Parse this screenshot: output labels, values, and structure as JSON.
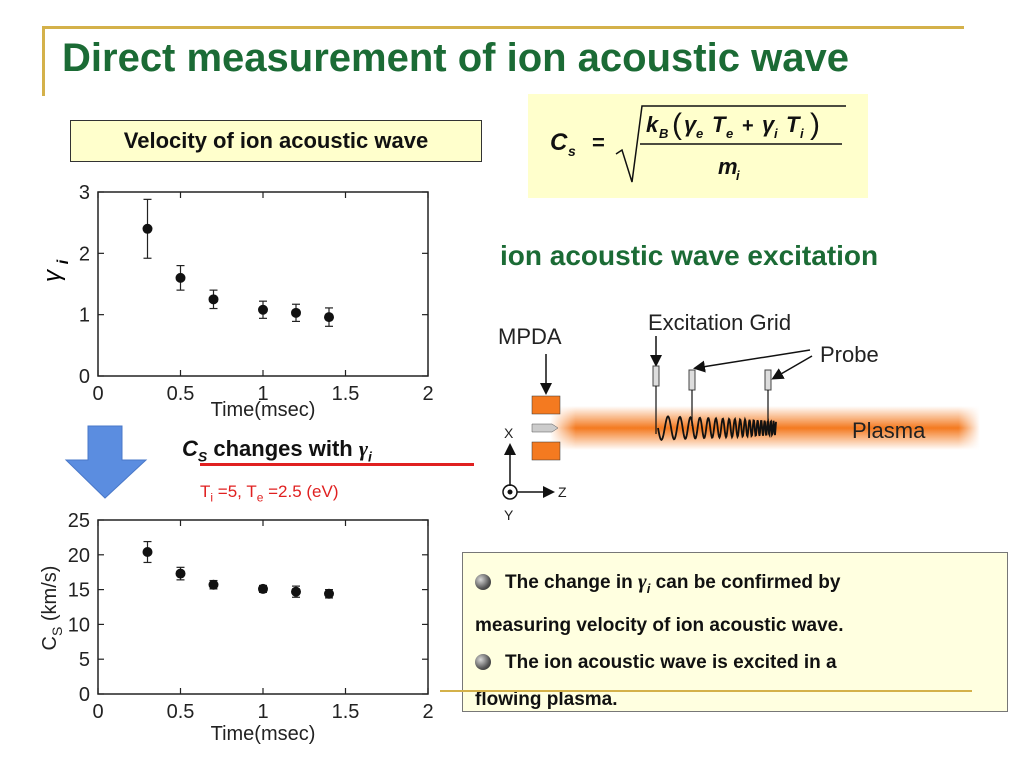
{
  "slide": {
    "title": "Direct measurement of ion acoustic wave",
    "velocity_label": "Velocity of ion acoustic wave",
    "formula": {
      "lhs": "C",
      "lhs_sub": "s",
      "eq": "=",
      "num_k": "k",
      "num_k_sub": "B",
      "num_open": "(",
      "gamma_e": "γ",
      "gamma_e_sub": "e",
      "te": "T",
      "te_sub": "e",
      "plus": "+",
      "gamma_i": "γ",
      "gamma_i_sub": "i",
      "ti": "T",
      "ti_sub": "i",
      "num_close": ")",
      "den_m": "m",
      "den_m_sub": "i"
    },
    "excitation_title": "ion acoustic wave excitation",
    "cs_note": {
      "c": "C",
      "c_sub": "S",
      "text": " changes with ",
      "gamma": "γ",
      "gamma_sub": "i"
    },
    "params": {
      "ti": "T",
      "ti_sub": "i",
      "ti_val": " =5, ",
      "te": "T",
      "te_sub": "e",
      "te_val": " =2.5 (eV)"
    },
    "notes": {
      "line1_a": "The change in ",
      "line1_gamma": "γ",
      "line1_gamma_sub": "i",
      "line1_b": " can be confirmed by",
      "line2": "measuring velocity of ion acoustic wave.",
      "line3": "The ion acoustic wave is excited in a",
      "line4": "flowing plasma."
    }
  },
  "diagram": {
    "mpda": "MPDA",
    "excitation_grid": "Excitation Grid",
    "probe": "Probe",
    "plasma": "Plasma",
    "axis_x": "X",
    "axis_y": "Y",
    "axis_z": "Z",
    "colors": {
      "plasma": "#f47a20",
      "mpda": "#f47a20"
    }
  },
  "chart_data": [
    {
      "type": "scatter",
      "xlabel": "Time(msec)",
      "ylabel": "γ",
      "ylabel_sub": "i",
      "xlim": [
        0,
        2
      ],
      "ylim": [
        0,
        3
      ],
      "xticks": [
        "0",
        "0.5",
        "1",
        "1.5",
        "2"
      ],
      "yticks": [
        "0",
        "1",
        "2",
        "3"
      ],
      "x": [
        0.3,
        0.5,
        0.7,
        1.0,
        1.2,
        1.4
      ],
      "y": [
        2.4,
        1.6,
        1.25,
        1.08,
        1.03,
        0.96
      ],
      "yerr": [
        0.48,
        0.2,
        0.15,
        0.14,
        0.14,
        0.15
      ]
    },
    {
      "type": "scatter",
      "xlabel": "Time(msec)",
      "ylabel": "C",
      "ylabel_sub": "S",
      "ylabel_unit": " (km/s)",
      "xlim": [
        0,
        2
      ],
      "ylim": [
        0,
        25
      ],
      "xticks": [
        "0",
        "0.5",
        "1",
        "1.5",
        "2"
      ],
      "yticks": [
        "0",
        "5",
        "10",
        "15",
        "20",
        "25"
      ],
      "x": [
        0.3,
        0.5,
        0.7,
        1.0,
        1.2,
        1.4
      ],
      "y": [
        20.4,
        17.3,
        15.7,
        15.1,
        14.7,
        14.4
      ],
      "yerr": [
        1.5,
        0.9,
        0.6,
        0.5,
        0.8,
        0.6
      ]
    }
  ]
}
